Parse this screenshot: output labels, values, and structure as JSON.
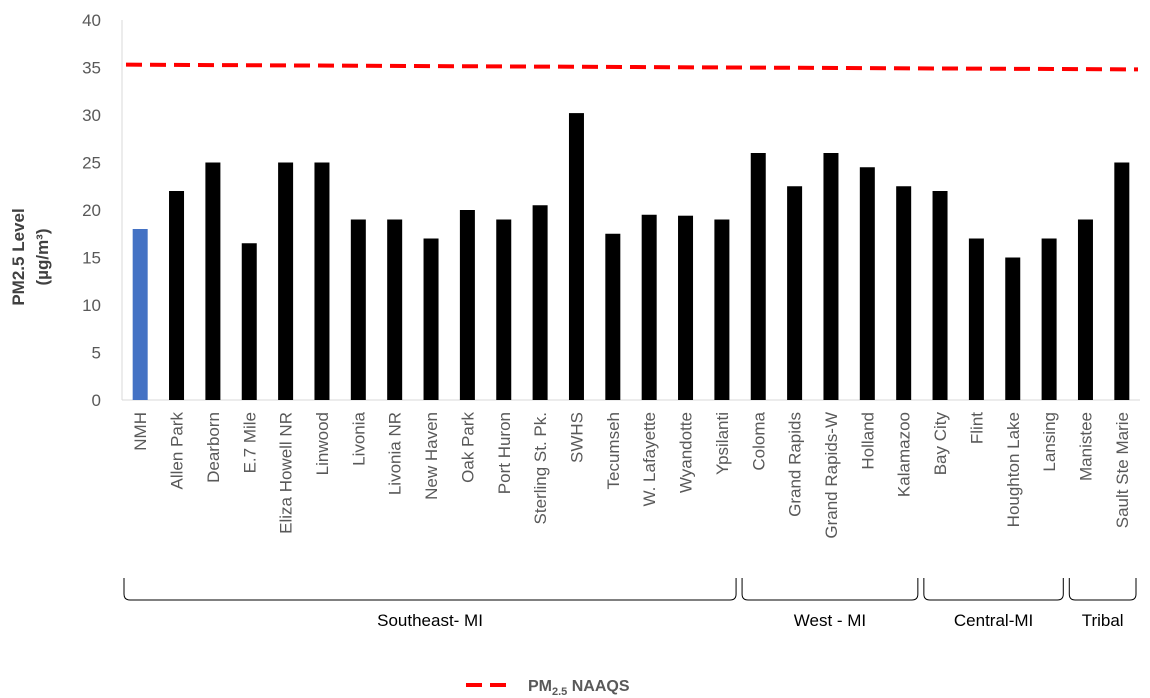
{
  "chart_data": {
    "type": "bar",
    "title": "",
    "xlabel": "",
    "ylabel_line1": "PM2.5 Level",
    "ylabel_line2": "(µg/m³)",
    "ylim": [
      0,
      40
    ],
    "yticks": [
      0,
      5,
      10,
      15,
      20,
      25,
      30,
      35,
      40
    ],
    "grid": false,
    "categories": [
      "NMH",
      "Allen Park",
      "Dearborn",
      "E.7 Mile",
      "Eliza Howell NR",
      "Linwood",
      "Livonia",
      "Livonia NR",
      "New Haven",
      "Oak Park",
      "Port Huron",
      "Sterling St. Pk.",
      "SWHS",
      "Tecumseh",
      "W. Lafayette",
      "Wyandotte",
      "Ypsilanti",
      "Coloma",
      "Grand Rapids",
      "Grand Rapids-W",
      "Holland",
      "Kalamazoo",
      "Bay City",
      "Flint",
      "Houghton Lake",
      "Lansing",
      "Manistee",
      "Sault Ste Marie"
    ],
    "series": [
      {
        "values": [
          18,
          22,
          25,
          16.5,
          25,
          25,
          19,
          19,
          17,
          20,
          19,
          20.5,
          30.2,
          17.5,
          19.5,
          19.4,
          19,
          26,
          22.5,
          26,
          24.5,
          22.5,
          22,
          17,
          15,
          17,
          19,
          25
        ]
      }
    ],
    "highlight_index": 0,
    "colors": {
      "bar": "#000000",
      "highlight": "#4472C4",
      "naaqs": "#FF0000"
    },
    "reference_line": {
      "name": "PM",
      "name_sub": "2.5",
      "name_suffix": " NAAQS",
      "start_value": 35.3,
      "end_value": 34.8,
      "style": "dashed"
    },
    "groups": [
      {
        "label": "Southeast- MI",
        "from": 0,
        "to": 16
      },
      {
        "label": "West - MI",
        "from": 17,
        "to": 21
      },
      {
        "label": "Central-MI",
        "from": 22,
        "to": 25
      },
      {
        "label": "Tribal",
        "from": 26,
        "to": 27
      }
    ],
    "legend_position": "bottom"
  }
}
